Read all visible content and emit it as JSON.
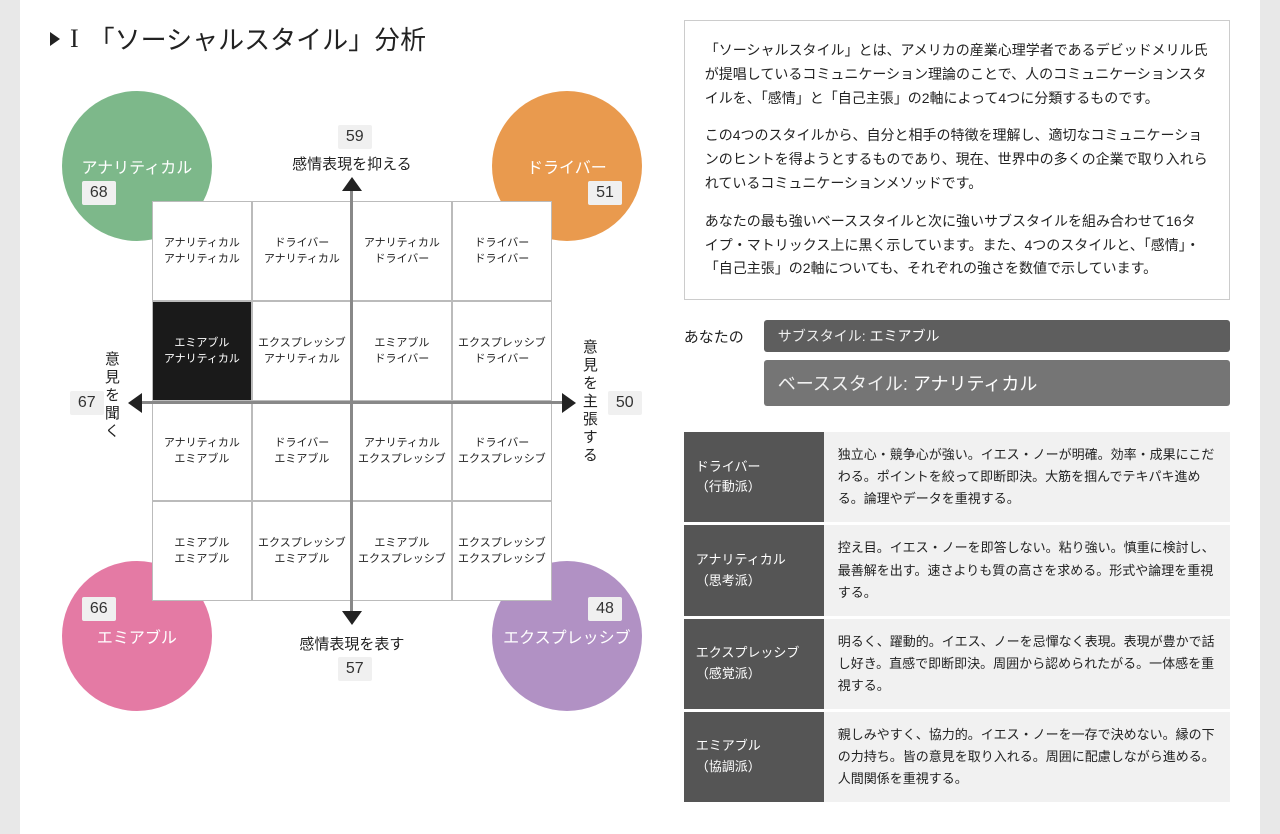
{
  "section": {
    "number": "I",
    "title": "「ソーシャルスタイル」分析"
  },
  "colors": {
    "analytical": "#7db88a",
    "driver": "#e99a4e",
    "amiable": "#e47aa4",
    "expressive": "#b191c4",
    "cell_highlight_bg": "#1a1a1a",
    "pill_sub_bg": "#5e5e5e",
    "pill_base_bg": "#757575",
    "def_name_bg": "#555555",
    "def_text_bg": "#f1f1f1",
    "badge_bg": "#f0f0f0"
  },
  "quadrants": {
    "tl": {
      "label": "アナリティカル",
      "score": "68"
    },
    "tr": {
      "label": "ドライバー",
      "score": "51"
    },
    "bl": {
      "label": "エミアブル",
      "score": "66"
    },
    "br": {
      "label": "エクスプレッシブ",
      "score": "48"
    }
  },
  "axes": {
    "top": {
      "label": "感情表現を抑える",
      "score": "59"
    },
    "bottom": {
      "label": "感情表現を表す",
      "score": "57"
    },
    "left": {
      "label": "意見を聞く",
      "score": "67"
    },
    "right": {
      "label": "意見を主張する",
      "score": "50"
    }
  },
  "matrix": {
    "highlight_index": 4,
    "cells": [
      {
        "l1": "アナリティカル",
        "l2": "アナリティカル"
      },
      {
        "l1": "ドライバー",
        "l2": "アナリティカル"
      },
      {
        "l1": "アナリティカル",
        "l2": "ドライバー"
      },
      {
        "l1": "ドライバー",
        "l2": "ドライバー"
      },
      {
        "l1": "エミアブル",
        "l2": "アナリティカル"
      },
      {
        "l1": "エクスプレッシブ",
        "l2": "アナリティカル"
      },
      {
        "l1": "エミアブル",
        "l2": "ドライバー"
      },
      {
        "l1": "エクスプレッシブ",
        "l2": "ドライバー"
      },
      {
        "l1": "アナリティカル",
        "l2": "エミアブル"
      },
      {
        "l1": "ドライバー",
        "l2": "エミアブル"
      },
      {
        "l1": "アナリティカル",
        "l2": "エクスプレッシブ"
      },
      {
        "l1": "ドライバー",
        "l2": "エクスプレッシブ"
      },
      {
        "l1": "エミアブル",
        "l2": "エミアブル"
      },
      {
        "l1": "エクスプレッシブ",
        "l2": "エミアブル"
      },
      {
        "l1": "エミアブル",
        "l2": "エクスプレッシブ"
      },
      {
        "l1": "エクスプレッシブ",
        "l2": "エクスプレッシブ"
      }
    ]
  },
  "description": {
    "p1": "「ソーシャルスタイル」とは、アメリカの産業心理学者であるデビッドメリル氏が提唱しているコミュニケーション理論のことで、人のコミュニケーションスタイルを、「感情」と「自己主張」の2軸によって4つに分類するものです。",
    "p2": "この4つのスタイルから、自分と相手の特徴を理解し、適切なコミュニケーションのヒントを得ようとするものであり、現在、世界中の多くの企業で取り入れられているコミュニケーションメソッドです。",
    "p3": "あなたの最も強いベーススタイルと次に強いサブスタイルを組み合わせて16タイプ・マトリックス上に黒く示しています。また、4つのスタイルと、「感情」・「自己主張」の2軸についても、それぞれの強さを数値で示しています。"
  },
  "yourStyle": {
    "heading": "あなたの",
    "sub": {
      "label": "サブスタイル:",
      "value": "エミアブル",
      "fontsize": "14px"
    },
    "base": {
      "label": "ベーススタイル:",
      "value": "アナリティカル",
      "fontsize": "18px"
    }
  },
  "definitions": [
    {
      "name": "ドライバー",
      "sub": "（行動派）",
      "text": "独立心・競争心が強い。イエス・ノーが明確。効率・成果にこだわる。ポイントを絞って即断即決。大筋を掴んでテキパキ進める。論理やデータを重視する。"
    },
    {
      "name": "アナリティカル",
      "sub": "（思考派）",
      "text": "控え目。イエス・ノーを即答しない。粘り強い。慎重に検討し、最善解を出す。速さよりも質の高さを求める。形式や論理を重視する。"
    },
    {
      "name": "エクスプレッシブ",
      "sub": "（感覚派）",
      "text": "明るく、躍動的。イエス、ノーを忌憚なく表現。表現が豊かで話し好き。直感で即断即決。周囲から認められたがる。一体感を重視する。"
    },
    {
      "name": "エミアブル",
      "sub": "（協調派）",
      "text": "親しみやすく、協力的。イエス・ノーを一存で決めない。縁の下の力持ち。皆の意見を取り入れる。周囲に配慮しながら進める。人間関係を重視する。"
    }
  ]
}
